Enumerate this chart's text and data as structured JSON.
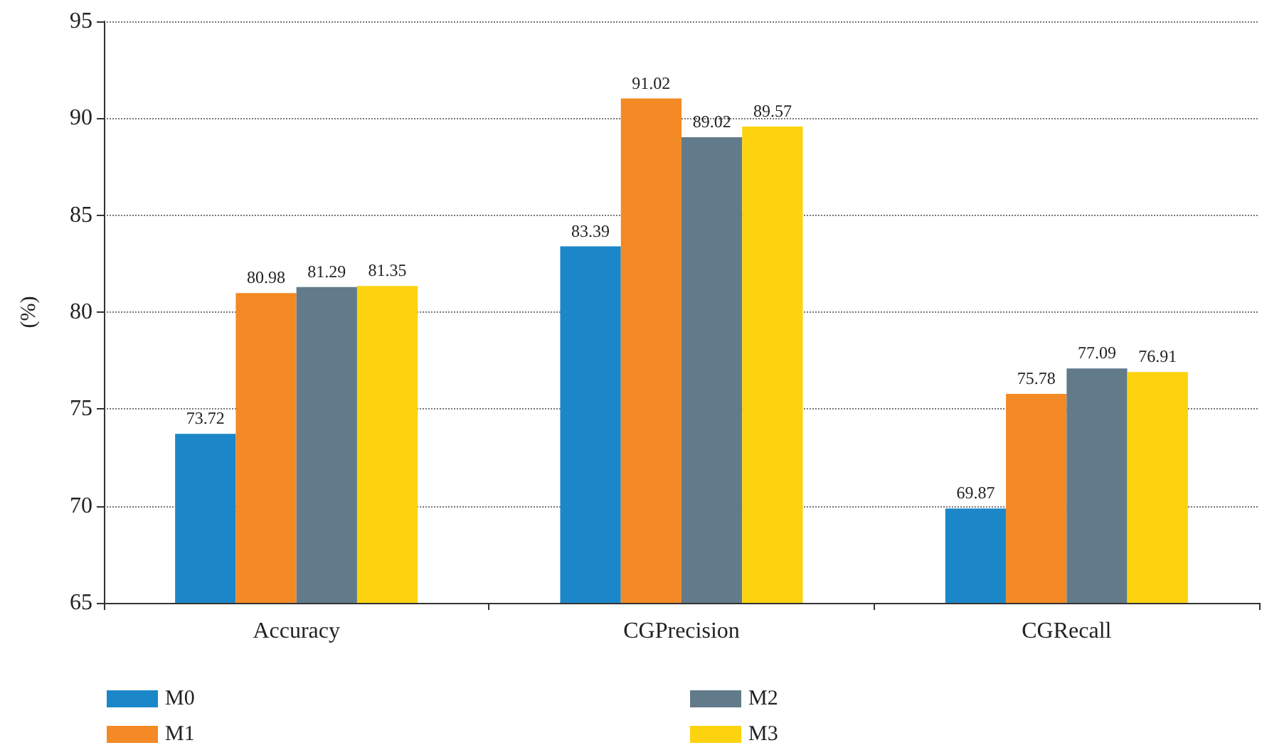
{
  "chart_data": {
    "type": "bar",
    "ylabel": "(%)",
    "categories": [
      "Accuracy",
      "CGPrecision",
      "CGRecall"
    ],
    "series": [
      {
        "name": "M0",
        "color": "#1b87c9",
        "values": [
          73.72,
          83.39,
          69.87
        ]
      },
      {
        "name": "M1",
        "color": "#f38a25",
        "values": [
          80.98,
          91.02,
          75.78
        ]
      },
      {
        "name": "M2",
        "color": "#627b8b",
        "values": [
          81.29,
          89.02,
          77.09
        ]
      },
      {
        "name": "M3",
        "color": "#fdd20f",
        "values": [
          81.35,
          89.57,
          76.91
        ]
      }
    ],
    "ylim": [
      65,
      95
    ],
    "yticks": [
      65,
      70,
      75,
      80,
      85,
      90,
      95
    ],
    "grid": "y",
    "legend": "bottom",
    "data_labels": true
  }
}
